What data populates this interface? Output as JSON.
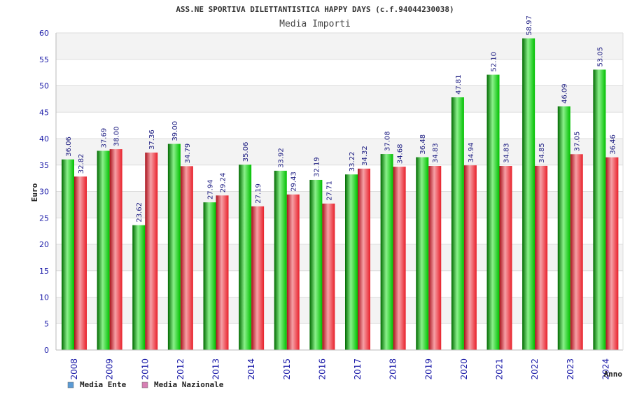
{
  "chart_data": {
    "type": "bar",
    "title": "ASS.NE SPORTIVA DILETTANTISTICA HAPPY DAYS (c.f.94044230038)",
    "subtitle": "Media Importi",
    "xlabel": "Anno",
    "ylabel": "Euro",
    "ylim": [
      0,
      60
    ],
    "yticks": [
      0,
      5,
      10,
      15,
      20,
      25,
      30,
      35,
      40,
      45,
      50,
      55,
      60
    ],
    "grid": true,
    "legend_position": "bottom-left",
    "categories": [
      "2008",
      "2009",
      "2010",
      "2012",
      "2013",
      "2014",
      "2015",
      "2016",
      "2017",
      "2018",
      "2019",
      "2020",
      "2021",
      "2022",
      "2023",
      "2024"
    ],
    "series": [
      {
        "name": "Media Ente",
        "legend_color": "#5b9bd5",
        "bar_color": "#00c000",
        "values": [
          36.06,
          37.69,
          23.62,
          39.0,
          27.94,
          35.06,
          33.92,
          32.19,
          33.22,
          37.08,
          36.48,
          47.81,
          52.1,
          58.97,
          46.09,
          53.05
        ],
        "value_labels": [
          "36.06",
          "37.69",
          "23.62",
          "39.00",
          "27.94",
          "35.06",
          "33.92",
          "32.19",
          "33.22",
          "37.08",
          "36.48",
          "47.81",
          "52.10",
          "58.97",
          "46.09",
          "53.05"
        ]
      },
      {
        "name": "Media Nazionale",
        "legend_color": "#d77fb4",
        "bar_color": "#e8202a",
        "values": [
          32.82,
          38.0,
          37.36,
          34.79,
          29.24,
          27.19,
          29.43,
          27.71,
          34.32,
          34.68,
          34.83,
          34.94,
          34.83,
          34.85,
          37.05,
          36.46
        ],
        "value_labels": [
          "32.82",
          "38.00",
          "37.36",
          "34.79",
          "29.24",
          "27.19",
          "29.43",
          "27.71",
          "34.32",
          "34.68",
          "34.83",
          "34.94",
          "34.83",
          "34.85",
          "37.05",
          "36.46"
        ]
      }
    ]
  }
}
